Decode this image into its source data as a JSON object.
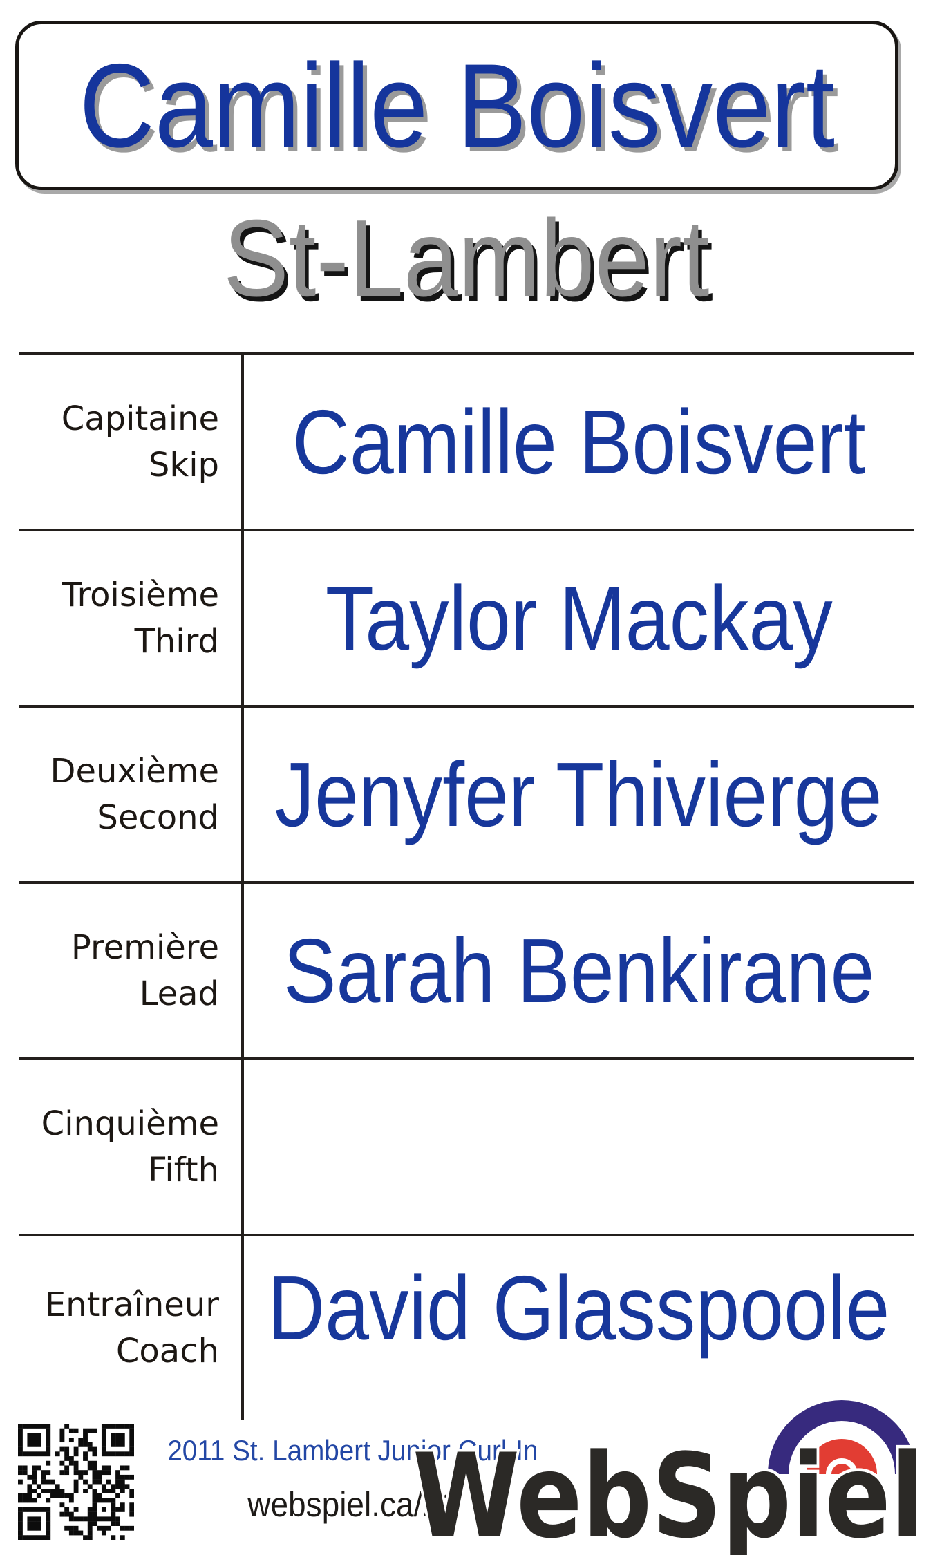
{
  "header": {
    "title": "Camille Boisvert"
  },
  "subtitle": "St-Lambert",
  "roster": {
    "rows": [
      {
        "label_fr": "Capitaine",
        "label_en": "Skip",
        "name": "Camille Boisvert"
      },
      {
        "label_fr": "Troisième",
        "label_en": "Third",
        "name": "Taylor Mackay"
      },
      {
        "label_fr": "Deuxième",
        "label_en": "Second",
        "name": "Jenyfer Thivierge"
      },
      {
        "label_fr": "Première",
        "label_en": "Lead",
        "name": "Sarah Benkirane"
      },
      {
        "label_fr": "Cinquième",
        "label_en": "Fifth",
        "name": ""
      },
      {
        "label_fr": "Entraîneur",
        "label_en": "Coach",
        "name": "David Glasspoole"
      }
    ]
  },
  "footer": {
    "event": "2011 St. Lambert Junior Curl-In",
    "url": "webspiel.ca/21",
    "logo_text": "WebSpiel",
    "qr": {
      "modules": 25,
      "seed": 7
    }
  },
  "colors": {
    "title_blue": "#15359c",
    "name_blue": "#17379b",
    "footer_blue": "#2347a5",
    "subtitle_gray": "#8f8f8f",
    "line_black": "#231f1c",
    "logo_purple": "#372a7e",
    "logo_red": "#e23d33",
    "logo_text_dark": "#2b2926"
  }
}
